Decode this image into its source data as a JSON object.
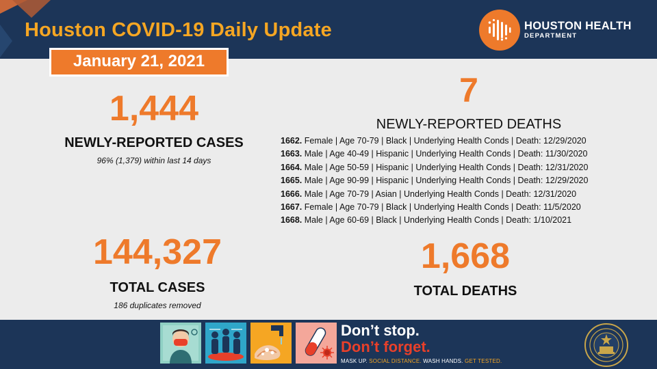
{
  "header": {
    "title": "Houston COVID-19 Daily Update",
    "date": "January 21, 2021",
    "logo_line1": "HOUSTON HEALTH",
    "logo_line2": "DEPARTMENT",
    "logo_icon": "department-logo-icon"
  },
  "cases": {
    "new_count": "1,444",
    "new_label": "NEWLY-REPORTED CASES",
    "new_note": "96% (1,379) within last 14 days",
    "total_count": "144,327",
    "total_label": "TOTAL CASES",
    "total_note": "186 duplicates removed"
  },
  "deaths": {
    "new_count": "7",
    "new_label": "NEWLY-REPORTED DEATHS",
    "list": [
      {
        "id": "1662.",
        "details": "Female | Age 70-79 | Black | Underlying Health Conds | Death: 12/29/2020"
      },
      {
        "id": "1663.",
        "details": "Male | Age 40-49 | Hispanic | Underlying Health Conds | Death: 11/30/2020"
      },
      {
        "id": "1664.",
        "details": "Male | Age 50-59 | Hispanic | Underlying Health Conds | Death: 12/31/2020"
      },
      {
        "id": "1665.",
        "details": "Male | Age 90-99 | Hispanic | Underlying Health Conds | Death: 12/29/2020"
      },
      {
        "id": "1666.",
        "details": "Male | Age 70-79 | Asian | Underlying Health Conds | Death: 12/31/2020"
      },
      {
        "id": "1667.",
        "details": "Female | Age 70-79 | Black | Underlying Health Conds | Death: 11/5/2020"
      },
      {
        "id": "1668.",
        "details": "Male | Age 60-69 | Black | Underlying Health Conds | Death: 1/10/2021"
      }
    ],
    "total_count": "1,668",
    "total_label": "TOTAL DEATHS"
  },
  "footer": {
    "slogan_line1": "Don’t stop.",
    "slogan_line2": "Don’t forget.",
    "tagline_1": "MASK UP.",
    "tagline_2": "SOCIAL DISTANCE.",
    "tagline_3": "WASH HANDS.",
    "tagline_4": "GET TESTED.",
    "icons": [
      "mask-icon",
      "social-distance-icon",
      "wash-hands-icon",
      "test-tube-icon",
      "city-seal-icon"
    ]
  },
  "colors": {
    "navy": "#1c3558",
    "orange": "#ee7a2b",
    "gold": "#f5a623",
    "red": "#e8402a",
    "background": "#ececec"
  }
}
